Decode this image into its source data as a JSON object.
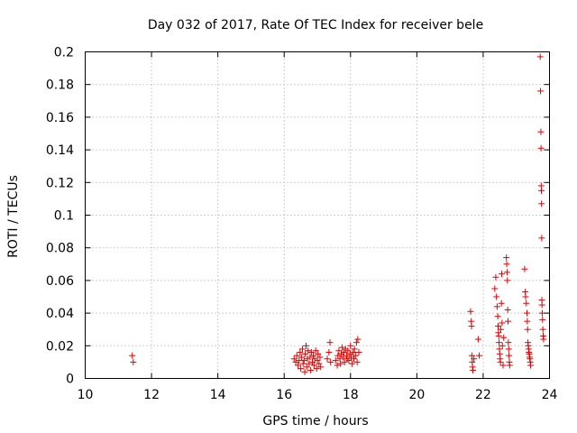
{
  "chart_data": {
    "type": "scatter",
    "title": "Day 032 of 2017, Rate Of TEC Index for receiver bele",
    "xlabel": "GPS time / hours",
    "ylabel": "ROTI / TECUs",
    "xlim": [
      10,
      24
    ],
    "ylim": [
      0,
      0.2
    ],
    "xticks": [
      "10",
      "12",
      "14",
      "16",
      "18",
      "20",
      "22",
      "24"
    ],
    "yticks": [
      "0",
      "0.02",
      "0.04",
      "0.06",
      "0.08",
      "0.1",
      "0.12",
      "0.14",
      "0.16",
      "0.18",
      "0.2"
    ],
    "grid": true,
    "marker": "+",
    "color": "#e00000",
    "points": [
      [
        11.42,
        0.014
      ],
      [
        11.45,
        0.01
      ],
      [
        16.3,
        0.012
      ],
      [
        16.35,
        0.01
      ],
      [
        16.38,
        0.014
      ],
      [
        16.42,
        0.008
      ],
      [
        16.45,
        0.011
      ],
      [
        16.48,
        0.016
      ],
      [
        16.5,
        0.006
      ],
      [
        16.52,
        0.013
      ],
      [
        16.55,
        0.018
      ],
      [
        16.57,
        0.009
      ],
      [
        16.6,
        0.011
      ],
      [
        16.62,
        0.004
      ],
      [
        16.63,
        0.015
      ],
      [
        16.66,
        0.02
      ],
      [
        16.68,
        0.007
      ],
      [
        16.7,
        0.012
      ],
      [
        16.72,
        0.017
      ],
      [
        16.75,
        0.009
      ],
      [
        16.78,
        0.013
      ],
      [
        16.8,
        0.005
      ],
      [
        16.82,
        0.016
      ],
      [
        16.85,
        0.01
      ],
      [
        16.88,
        0.014
      ],
      [
        16.9,
        0.008
      ],
      [
        16.92,
        0.012
      ],
      [
        16.95,
        0.017
      ],
      [
        16.98,
        0.006
      ],
      [
        17.0,
        0.011
      ],
      [
        17.02,
        0.015
      ],
      [
        17.05,
        0.009
      ],
      [
        17.08,
        0.013
      ],
      [
        17.1,
        0.007
      ],
      [
        17.3,
        0.012
      ],
      [
        17.35,
        0.016
      ],
      [
        17.38,
        0.022
      ],
      [
        17.4,
        0.01
      ],
      [
        17.55,
        0.011
      ],
      [
        17.6,
        0.008
      ],
      [
        17.62,
        0.014
      ],
      [
        17.65,
        0.017
      ],
      [
        17.68,
        0.012
      ],
      [
        17.7,
        0.009
      ],
      [
        17.72,
        0.015
      ],
      [
        17.75,
        0.019
      ],
      [
        17.78,
        0.013
      ],
      [
        17.8,
        0.016
      ],
      [
        17.82,
        0.01
      ],
      [
        17.85,
        0.018
      ],
      [
        17.88,
        0.014
      ],
      [
        17.9,
        0.012
      ],
      [
        17.92,
        0.017
      ],
      [
        17.95,
        0.011
      ],
      [
        17.98,
        0.015
      ],
      [
        18.0,
        0.02
      ],
      [
        18.02,
        0.013
      ],
      [
        18.05,
        0.009
      ],
      [
        18.08,
        0.016
      ],
      [
        18.1,
        0.012
      ],
      [
        18.12,
        0.018
      ],
      [
        18.15,
        0.014
      ],
      [
        18.18,
        0.022
      ],
      [
        18.2,
        0.01
      ],
      [
        18.22,
        0.024
      ],
      [
        18.25,
        0.016
      ],
      [
        21.62,
        0.041
      ],
      [
        21.64,
        0.035
      ],
      [
        21.65,
        0.032
      ],
      [
        21.66,
        0.014
      ],
      [
        21.67,
        0.01
      ],
      [
        21.68,
        0.007
      ],
      [
        21.69,
        0.005
      ],
      [
        21.72,
        0.012
      ],
      [
        21.85,
        0.024
      ],
      [
        21.88,
        0.014
      ],
      [
        22.35,
        0.055
      ],
      [
        22.38,
        0.062
      ],
      [
        22.4,
        0.05
      ],
      [
        22.42,
        0.044
      ],
      [
        22.44,
        0.038
      ],
      [
        22.45,
        0.032
      ],
      [
        22.46,
        0.028
      ],
      [
        22.47,
        0.026
      ],
      [
        22.48,
        0.022
      ],
      [
        22.49,
        0.018
      ],
      [
        22.5,
        0.015
      ],
      [
        22.51,
        0.012
      ],
      [
        22.52,
        0.01
      ],
      [
        22.53,
        0.03
      ],
      [
        22.55,
        0.046
      ],
      [
        22.56,
        0.064
      ],
      [
        22.57,
        0.034
      ],
      [
        22.58,
        0.02
      ],
      [
        22.6,
        0.008
      ],
      [
        22.62,
        0.025
      ],
      [
        22.7,
        0.074
      ],
      [
        22.71,
        0.07
      ],
      [
        22.72,
        0.065
      ],
      [
        22.73,
        0.06
      ],
      [
        22.74,
        0.042
      ],
      [
        22.75,
        0.035
      ],
      [
        22.76,
        0.022
      ],
      [
        22.77,
        0.018
      ],
      [
        22.78,
        0.014
      ],
      [
        22.79,
        0.01
      ],
      [
        22.8,
        0.008
      ],
      [
        23.25,
        0.067
      ],
      [
        23.27,
        0.053
      ],
      [
        23.28,
        0.05
      ],
      [
        23.3,
        0.046
      ],
      [
        23.32,
        0.04
      ],
      [
        23.33,
        0.035
      ],
      [
        23.34,
        0.03
      ],
      [
        23.35,
        0.022
      ],
      [
        23.36,
        0.02
      ],
      [
        23.37,
        0.018
      ],
      [
        23.38,
        0.016
      ],
      [
        23.39,
        0.015
      ],
      [
        23.4,
        0.013
      ],
      [
        23.41,
        0.012
      ],
      [
        23.42,
        0.01
      ],
      [
        23.43,
        0.008
      ],
      [
        23.72,
        0.197
      ],
      [
        23.73,
        0.176
      ],
      [
        23.74,
        0.151
      ],
      [
        23.745,
        0.141
      ],
      [
        23.75,
        0.118
      ],
      [
        23.755,
        0.115
      ],
      [
        23.76,
        0.107
      ],
      [
        23.765,
        0.086
      ],
      [
        23.77,
        0.048
      ],
      [
        23.775,
        0.045
      ],
      [
        23.78,
        0.04
      ],
      [
        23.79,
        0.036
      ],
      [
        23.8,
        0.03
      ],
      [
        23.81,
        0.026
      ],
      [
        23.82,
        0.024
      ]
    ]
  }
}
